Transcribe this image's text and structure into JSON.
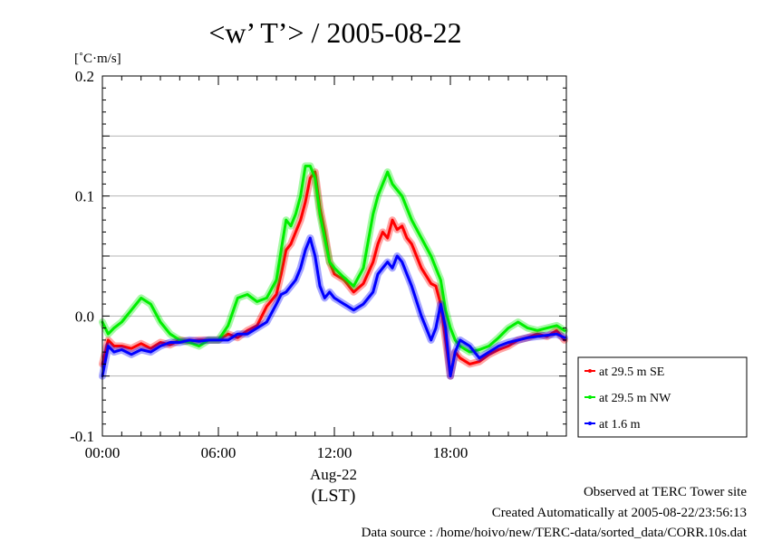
{
  "chart_data": {
    "type": "line",
    "title": "<w’ T’> / 2005-08-22",
    "ylabel": "[˚C·m/s]",
    "xlabel": "(LST)",
    "date_label": "Aug-22",
    "xlim": [
      0,
      24
    ],
    "ylim": [
      -0.1,
      0.2
    ],
    "xticks": [
      {
        "value": 0,
        "label": "00:00"
      },
      {
        "value": 6,
        "label": "06:00"
      },
      {
        "value": 12,
        "label": "12:00"
      },
      {
        "value": 18,
        "label": "18:00"
      }
    ],
    "yticks": [
      {
        "value": -0.1,
        "label": "-0.1"
      },
      {
        "value": 0.0,
        "label": "0.0"
      },
      {
        "value": 0.1,
        "label": "0.1"
      },
      {
        "value": 0.2,
        "label": "0.2"
      }
    ],
    "gridlines_y": [
      -0.05,
      0.05,
      0.15
    ],
    "legend_position": "right-outside",
    "series": [
      {
        "name": "at 29.5 m SE",
        "color": "#ff0000",
        "x": [
          0,
          0.3,
          0.6,
          1,
          1.5,
          2,
          2.5,
          3,
          3.5,
          4,
          4.5,
          5,
          5.5,
          6,
          6.5,
          7,
          7.5,
          8,
          8.5,
          9,
          9.25,
          9.5,
          9.75,
          10,
          10.25,
          10.5,
          10.75,
          11,
          11.25,
          11.5,
          11.75,
          12,
          12.5,
          13,
          13.5,
          14,
          14.25,
          14.5,
          14.75,
          15,
          15.25,
          15.5,
          15.75,
          16,
          16.5,
          17,
          17.25,
          17.5,
          17.75,
          18,
          18.25,
          18.5,
          19,
          19.5,
          20,
          20.5,
          21,
          21.5,
          22,
          22.5,
          23,
          23.5,
          23.9
        ],
        "values": [
          -0.04,
          -0.02,
          -0.025,
          -0.025,
          -0.027,
          -0.023,
          -0.027,
          -0.022,
          -0.024,
          -0.02,
          -0.021,
          -0.02,
          -0.02,
          -0.02,
          -0.015,
          -0.018,
          -0.012,
          -0.008,
          0.008,
          0.018,
          0.035,
          0.055,
          0.06,
          0.07,
          0.08,
          0.095,
          0.115,
          0.12,
          0.09,
          0.07,
          0.045,
          0.035,
          0.03,
          0.02,
          0.027,
          0.045,
          0.06,
          0.07,
          0.065,
          0.08,
          0.072,
          0.075,
          0.065,
          0.06,
          0.04,
          0.027,
          0.025,
          0.01,
          -0.02,
          -0.05,
          -0.03,
          -0.035,
          -0.04,
          -0.038,
          -0.032,
          -0.028,
          -0.025,
          -0.02,
          -0.018,
          -0.015,
          -0.017,
          -0.012,
          -0.02
        ]
      },
      {
        "name": "at 29.5 m NW",
        "color": "#00ee00",
        "x": [
          0,
          0.3,
          0.6,
          1,
          1.5,
          2,
          2.5,
          3,
          3.5,
          4,
          4.5,
          5,
          5.5,
          6,
          6.5,
          7,
          7.5,
          8,
          8.5,
          9,
          9.25,
          9.5,
          9.75,
          10,
          10.25,
          10.5,
          10.75,
          11,
          11.25,
          11.5,
          11.75,
          12,
          12.5,
          13,
          13.5,
          14,
          14.25,
          14.5,
          14.75,
          15,
          15.25,
          15.5,
          15.75,
          16,
          16.5,
          17,
          17.25,
          17.5,
          17.75,
          18,
          18.25,
          18.5,
          19,
          19.5,
          20,
          20.5,
          21,
          21.5,
          22,
          22.5,
          23,
          23.5,
          23.9
        ],
        "values": [
          -0.005,
          -0.015,
          -0.01,
          -0.005,
          0.005,
          0.015,
          0.01,
          -0.005,
          -0.015,
          -0.02,
          -0.022,
          -0.025,
          -0.02,
          -0.02,
          -0.008,
          0.015,
          0.018,
          0.012,
          0.015,
          0.03,
          0.055,
          0.08,
          0.075,
          0.085,
          0.1,
          0.125,
          0.125,
          0.115,
          0.085,
          0.065,
          0.045,
          0.04,
          0.032,
          0.025,
          0.04,
          0.085,
          0.1,
          0.11,
          0.12,
          0.11,
          0.105,
          0.1,
          0.09,
          0.08,
          0.065,
          0.05,
          0.04,
          0.03,
          0.005,
          -0.01,
          -0.02,
          -0.025,
          -0.03,
          -0.028,
          -0.025,
          -0.018,
          -0.01,
          -0.005,
          -0.01,
          -0.012,
          -0.01,
          -0.008,
          -0.012
        ]
      },
      {
        "name": "at 1.6 m",
        "color": "#0000ff",
        "x": [
          0,
          0.3,
          0.6,
          1,
          1.5,
          2,
          2.5,
          3,
          3.5,
          4,
          4.5,
          5,
          5.5,
          6,
          6.5,
          7,
          7.5,
          8,
          8.5,
          9,
          9.25,
          9.5,
          9.75,
          10,
          10.25,
          10.5,
          10.75,
          11,
          11.25,
          11.5,
          11.75,
          12,
          12.5,
          13,
          13.5,
          14,
          14.25,
          14.5,
          14.75,
          15,
          15.25,
          15.5,
          15.75,
          16,
          16.5,
          17,
          17.25,
          17.5,
          17.75,
          18,
          18.25,
          18.5,
          19,
          19.5,
          20,
          20.5,
          21,
          21.5,
          22,
          22.5,
          23,
          23.5,
          23.9
        ],
        "values": [
          -0.05,
          -0.025,
          -0.03,
          -0.028,
          -0.032,
          -0.028,
          -0.03,
          -0.025,
          -0.022,
          -0.022,
          -0.02,
          -0.021,
          -0.02,
          -0.02,
          -0.02,
          -0.015,
          -0.015,
          -0.01,
          -0.005,
          0.01,
          0.018,
          0.02,
          0.025,
          0.03,
          0.04,
          0.055,
          0.065,
          0.05,
          0.025,
          0.015,
          0.02,
          0.015,
          0.01,
          0.005,
          0.01,
          0.02,
          0.035,
          0.04,
          0.045,
          0.04,
          0.05,
          0.045,
          0.035,
          0.025,
          0.0,
          -0.02,
          -0.01,
          0.01,
          -0.01,
          -0.05,
          -0.03,
          -0.02,
          -0.025,
          -0.035,
          -0.03,
          -0.025,
          -0.022,
          -0.02,
          -0.018,
          -0.017,
          -0.016,
          -0.015,
          -0.018
        ]
      }
    ]
  },
  "footer": {
    "site": "Observed at TERC Tower site",
    "created": "Created Automatically at 2005-08-22/23:56:13",
    "source": "Data source : /home/hoivo/new/TERC-data/sorted_data/CORR.10s.dat"
  }
}
